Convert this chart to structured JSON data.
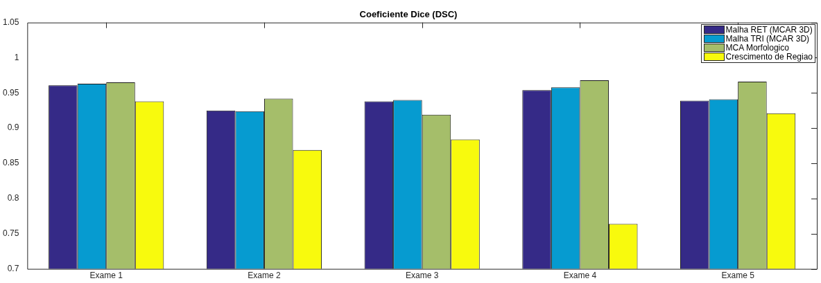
{
  "chart_data": {
    "type": "bar",
    "title": "Coeficiente Dice (DSC)",
    "categories": [
      "Exame 1",
      "Exame 2",
      "Exame 3",
      "Exame 4",
      "Exame 5"
    ],
    "series": [
      {
        "name": "Malha RET (MCAR 3D)",
        "color": "#352a87",
        "values": [
          0.961,
          0.925,
          0.938,
          0.954,
          0.939
        ]
      },
      {
        "name": "Malha TRI (MCAR 3D)",
        "color": "#069bd0",
        "values": [
          0.963,
          0.924,
          0.94,
          0.958,
          0.941
        ]
      },
      {
        "name": "MCA Morfologico",
        "color": "#a5be6a",
        "values": [
          0.965,
          0.942,
          0.919,
          0.968,
          0.966
        ]
      },
      {
        "name": "Crescimento de Regiao",
        "color": "#f8fa0d",
        "values": [
          0.938,
          0.869,
          0.884,
          0.764,
          0.921
        ]
      }
    ],
    "ylim": [
      0.7,
      1.05
    ],
    "yticks": [
      0.7,
      0.75,
      0.8,
      0.85,
      0.9,
      0.95,
      1,
      1.05
    ],
    "grid": false,
    "legend": "top right"
  }
}
